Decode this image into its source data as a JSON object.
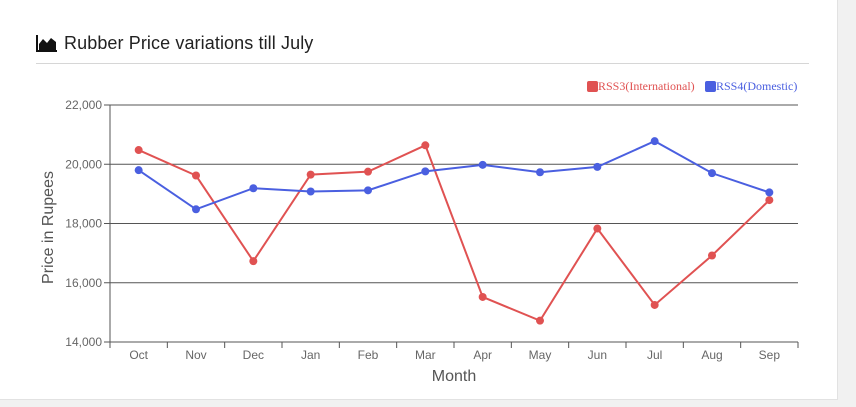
{
  "card": {
    "title": "Rubber Price variations till July",
    "title_icon": "area-chart-icon"
  },
  "chart_data": {
    "type": "line",
    "categories": [
      "Oct",
      "Nov",
      "Dec",
      "Jan",
      "Feb",
      "Mar",
      "Apr",
      "May",
      "Jun",
      "Jul",
      "Aug",
      "Sep"
    ],
    "series": [
      {
        "name": "RSS3(International)",
        "color": "#e05252",
        "values": [
          20480,
          19620,
          16730,
          19650,
          19750,
          20640,
          15520,
          14720,
          17830,
          15250,
          16920,
          18790
        ]
      },
      {
        "name": "RSS4(Domestic)",
        "color": "#4a5fe0",
        "values": [
          19800,
          18480,
          19190,
          19080,
          19120,
          19760,
          19980,
          19730,
          19910,
          20780,
          19700,
          19050
        ]
      }
    ],
    "xlabel": "Month",
    "ylabel": "Price in Rupees",
    "ylim": [
      14000,
      22000
    ],
    "yticks": [
      14000,
      16000,
      18000,
      20000,
      22000
    ],
    "ytick_labels": [
      "14,000",
      "16,000",
      "18,000",
      "20,000",
      "22,000"
    ],
    "grid": true,
    "legend_position": "top-right"
  }
}
